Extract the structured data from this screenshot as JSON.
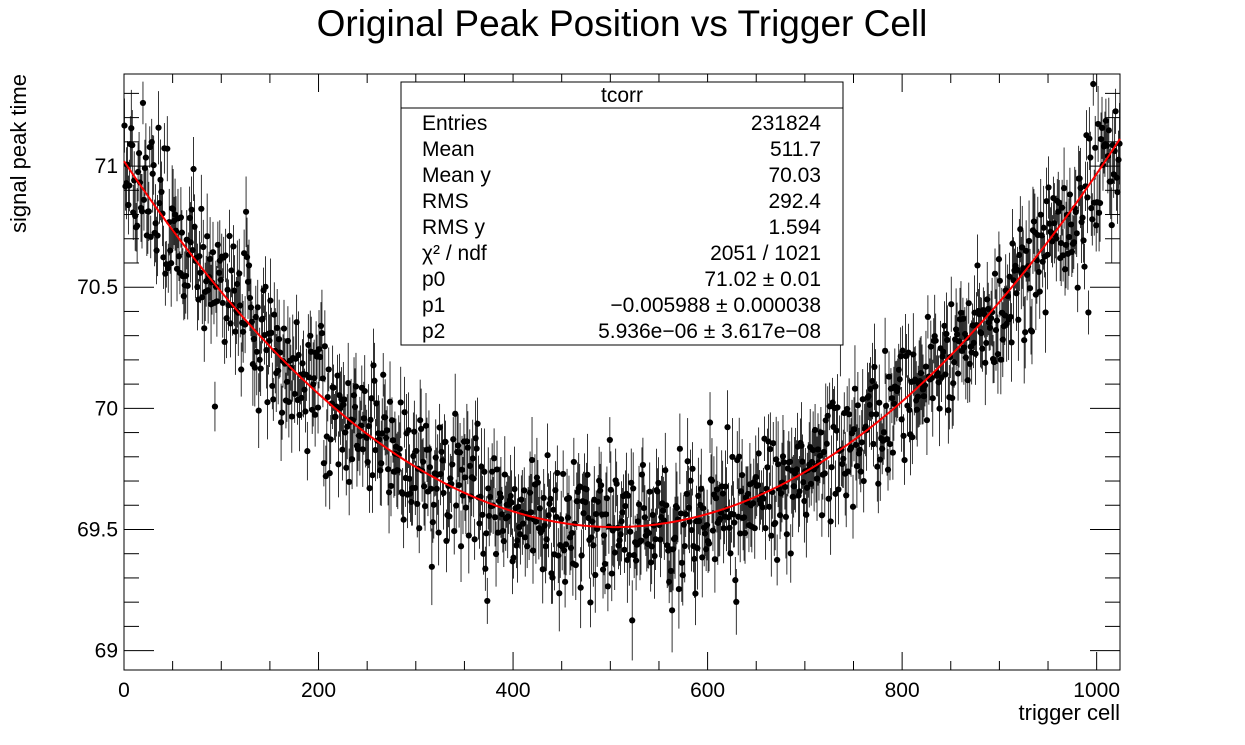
{
  "chart_data": {
    "type": "scatter",
    "title": "Original Peak Position vs Trigger Cell",
    "xlabel": "trigger cell",
    "ylabel": "signal peak time",
    "xlim": [
      0,
      1024
    ],
    "ylim": [
      68.92,
      71.38
    ],
    "x_ticks": [
      0,
      200,
      400,
      600,
      800,
      1000
    ],
    "y_ticks": [
      69,
      69.5,
      70,
      70.5,
      71
    ],
    "x_tick_labels": [
      "0",
      "200",
      "400",
      "600",
      "800",
      "1000"
    ],
    "y_tick_labels": [
      "69",
      "69.5",
      "70",
      "70.5",
      "71"
    ],
    "grid": false,
    "marker_color": "#000000",
    "fit_color": "#ff0000",
    "series": [
      {
        "type": "points-with-errors",
        "x_start": 0,
        "x_step": 1,
        "count": 1024,
        "noise_sigma": 0.14,
        "typical_y_error": 0.12
      },
      {
        "type": "fit-curve",
        "model": "pol2",
        "p0": 71.02,
        "p1": -0.005988,
        "p2": 5.936e-06
      }
    ],
    "stats_box": {
      "title": "tcorr",
      "position": "top-center",
      "rows": [
        {
          "label": "Entries",
          "value": "231824"
        },
        {
          "label": "Mean",
          "value": "511.7"
        },
        {
          "label": "Mean y",
          "value": "70.03"
        },
        {
          "label": "RMS",
          "value": "292.4"
        },
        {
          "label": "RMS y",
          "value": "1.594"
        },
        {
          "label": "χ² / ndf",
          "value": "2051 / 1021"
        },
        {
          "label": "p0",
          "value": "71.02 ± 0.01"
        },
        {
          "label": "p1",
          "value": "−0.005988 ± 0.000038"
        },
        {
          "label": "p2",
          "value": "5.936e−06 ± 3.617e−08"
        }
      ]
    }
  }
}
